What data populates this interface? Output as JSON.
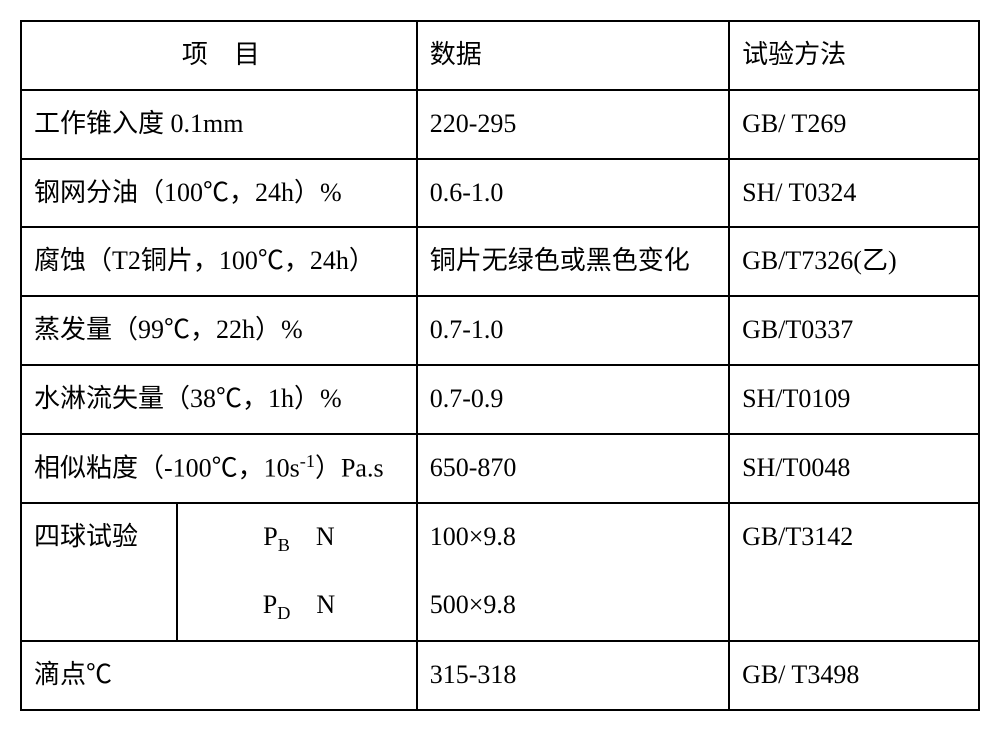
{
  "header": {
    "c1": "项　目",
    "c2": "数据",
    "c3": "试验方法"
  },
  "rows": {
    "r1": {
      "item": "工作锥入度 0.1mm",
      "data": "220-295",
      "method": "GB/ T269"
    },
    "r2": {
      "item": "钢网分油（100℃，24h）%",
      "data": "0.6-1.0",
      "method": "SH/ T0324"
    },
    "r3": {
      "item": "腐蚀（T2铜片，100℃，24h）",
      "data": "铜片无绿色或黑色变化",
      "method": "GB/T7326(乙)"
    },
    "r4": {
      "item": "蒸发量（99℃，22h）%",
      "data": "0.7-1.0",
      "method": "GB/T0337"
    },
    "r5": {
      "item": "水淋流失量（38℃，1h）%",
      "data": "0.7-0.9",
      "method": "SH/T0109"
    },
    "r6": {
      "item_prefix": "相似粘度（-100℃，10s",
      "item_sup": "-1",
      "item_suffix": "）Pa.s",
      "data": "650-870",
      "method": "SH/T0048"
    },
    "r7": {
      "label": "四球试验",
      "sub1_sym": "P",
      "sub1_idx": "B",
      "sub1_unit": "　N",
      "sub1_data": "100×9.8",
      "sub2_sym": "P",
      "sub2_idx": "D",
      "sub2_unit": "　N",
      "sub2_data": "500×9.8",
      "method": "GB/T3142"
    },
    "r8": {
      "item": "滴点℃",
      "data": "315-318",
      "method": "GB/ T3498"
    }
  }
}
